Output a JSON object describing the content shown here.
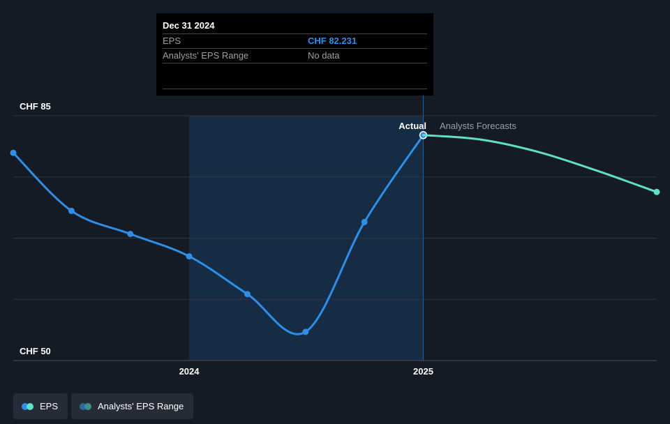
{
  "tooltip": {
    "date": "Dec 31 2024",
    "rows": [
      {
        "label": "EPS",
        "value": "CHF 82.231"
      },
      {
        "label": "Analysts' EPS Range",
        "value": "No data"
      }
    ]
  },
  "labels": {
    "actual": "Actual",
    "forecast": "Analysts Forecasts"
  },
  "legend": [
    {
      "label": "EPS",
      "color_a": "#2f8fe8",
      "color_b": "#5fe0c8"
    },
    {
      "label": "Analysts' EPS Range",
      "color_a": "#2b6a9a",
      "color_b": "#3f8f8a"
    }
  ],
  "colors": {
    "background": "#151b24",
    "actual_line": "#2f8fe8",
    "forecast_line": "#5fe0c8",
    "grid": "#2e3540",
    "highlight": "#17314f"
  },
  "chart_data": {
    "type": "line",
    "x_ticks": [
      "2024",
      "2025"
    ],
    "y_ticks": [
      "CHF 50",
      "CHF 85"
    ],
    "ylim": [
      50,
      85
    ],
    "xlim": [
      "2023-03-31",
      "2025-12-31"
    ],
    "highlight_range": [
      "2023-12-31",
      "2024-12-31"
    ],
    "grid": true,
    "series": [
      {
        "name": "EPS",
        "x": [
          "2023-03-31",
          "2023-06-30",
          "2023-09-30",
          "2023-12-31",
          "2024-03-31",
          "2024-06-30",
          "2024-09-30",
          "2024-12-31"
        ],
        "y": [
          79.7,
          71.4,
          68.1,
          64.9,
          59.5,
          54.1,
          69.8,
          82.231
        ]
      },
      {
        "name": "Analysts Forecasts",
        "x": [
          "2024-12-31",
          "2025-03-31",
          "2025-06-30",
          "2025-09-30",
          "2025-12-31"
        ],
        "y": [
          82.231,
          81.6,
          79.8,
          77.1,
          74.1
        ]
      }
    ]
  }
}
